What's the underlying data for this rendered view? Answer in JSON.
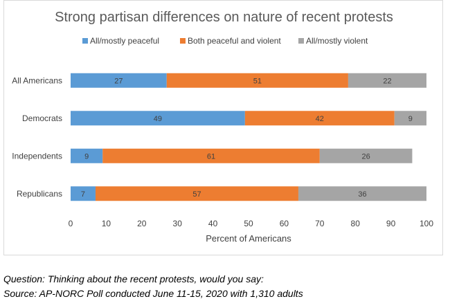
{
  "chart_data": {
    "type": "bar",
    "orientation": "horizontal",
    "stacked": true,
    "title": "Strong partisan differences on nature of recent protests",
    "xlabel": "Percent of Americans",
    "ylabel": "",
    "xlim": [
      0,
      100
    ],
    "xticks": [
      0,
      10,
      20,
      30,
      40,
      50,
      60,
      70,
      80,
      90,
      100
    ],
    "grid": false,
    "legend_position": "top",
    "categories": [
      "All Americans",
      "Democrats",
      "Independents",
      "Republicans"
    ],
    "series": [
      {
        "name": "All/mostly peaceful",
        "color": "#5b9bd5",
        "values": [
          27,
          49,
          9,
          7
        ]
      },
      {
        "name": "Both peaceful and violent",
        "color": "#ed7d31",
        "values": [
          51,
          42,
          61,
          57
        ]
      },
      {
        "name": "All/mostly violent",
        "color": "#a5a5a5",
        "values": [
          22,
          9,
          26,
          36
        ]
      }
    ]
  },
  "footnotes": {
    "question": "Question: Thinking about the recent protests, would you say:",
    "source": "Source: AP-NORC Poll conducted June 11-15, 2020 with 1,310 adults"
  }
}
